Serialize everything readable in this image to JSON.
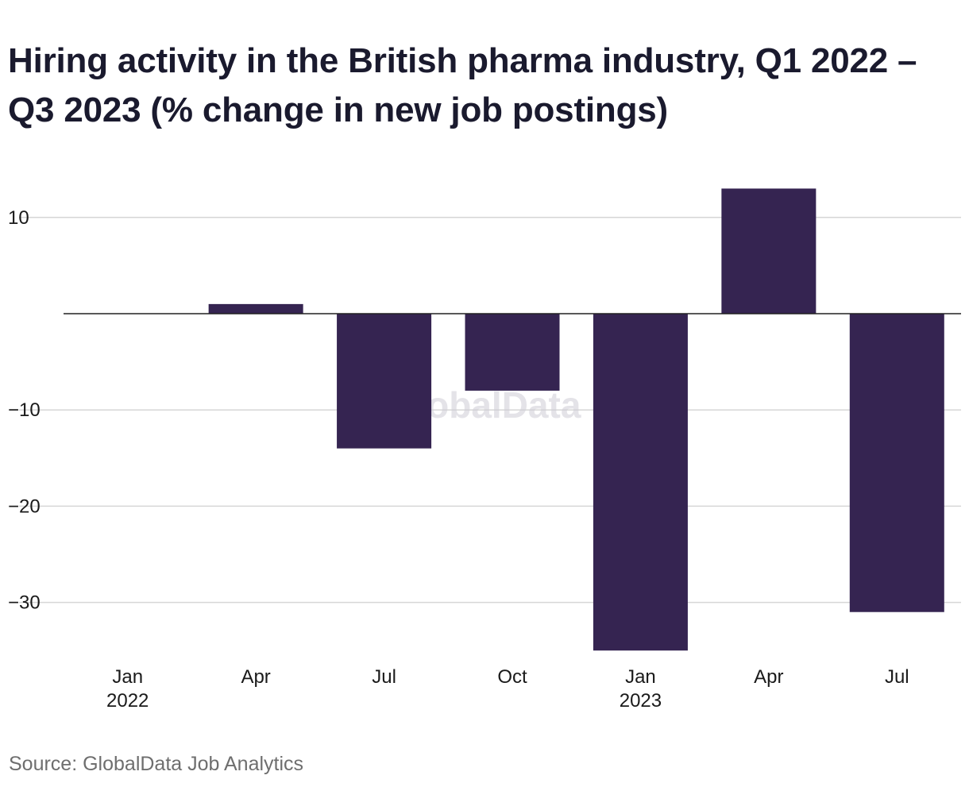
{
  "title": "Hiring activity in the British pharma industry, Q1 2022 – Q3 2023 (% change in new job postings)",
  "source": "Source: GlobalData Job Analytics",
  "watermark": "GlobalData",
  "colors": {
    "bar": "#352451",
    "grid": "#d6d6d6",
    "zero_line": "#222222",
    "title": "#1a1a2e",
    "source": "#6e6e6e"
  },
  "chart_data": {
    "type": "bar",
    "categories": [
      "Jan 2022",
      "Apr 2022",
      "Jul 2022",
      "Oct 2022",
      "Jan 2023",
      "Apr 2023",
      "Jul 2023"
    ],
    "x_tick_labels": [
      {
        "month": "Jan",
        "year": "2022"
      },
      {
        "month": "Apr",
        "year": ""
      },
      {
        "month": "Jul",
        "year": ""
      },
      {
        "month": "Oct",
        "year": ""
      },
      {
        "month": "Jan",
        "year": "2023"
      },
      {
        "month": "Apr",
        "year": ""
      },
      {
        "month": "Jul",
        "year": ""
      }
    ],
    "values": [
      0,
      1,
      -14,
      -8,
      -35,
      13,
      -31
    ],
    "y_ticks": [
      10,
      -10,
      -20,
      -30
    ],
    "y_tick_labels": [
      "10",
      "−10",
      "−20",
      "−30"
    ],
    "ylim": [
      -35,
      13
    ],
    "grid": true,
    "legend": false,
    "xlabel": "",
    "ylabel": ""
  }
}
